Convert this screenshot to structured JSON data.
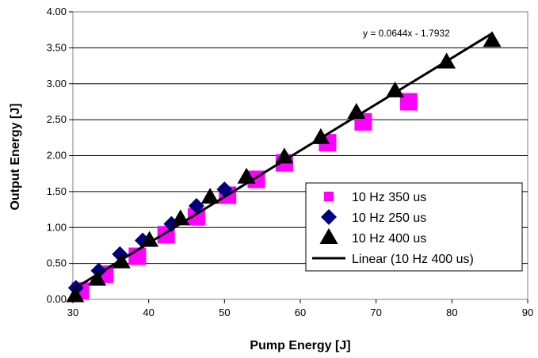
{
  "chart_data": {
    "type": "scatter",
    "title": "",
    "xlabel": "Pump Energy [J]",
    "ylabel": "Output Energy [J]",
    "xlim": [
      30,
      90
    ],
    "ylim": [
      0,
      4
    ],
    "xticks": [
      "30",
      "40",
      "50",
      "60",
      "70",
      "80",
      "90"
    ],
    "yticks": [
      "0.00",
      "0.50",
      "1.00",
      "1.50",
      "2.00",
      "2.50",
      "3.00",
      "3.50",
      "4.00"
    ],
    "grid": "horizontal",
    "legend_position": "bottom-right",
    "trendline_equation": "y = 0.0644x - 1.7932",
    "trendline": {
      "name": "Linear (10 Hz 400 us)",
      "slope": 0.0644,
      "intercept": -1.7932,
      "x_range": [
        30.3,
        85.3
      ],
      "color": "#000000"
    },
    "series": [
      {
        "name": "10 Hz 350 us",
        "marker": "square",
        "color": "#ff00ff",
        "x": [
          31.0,
          34.2,
          38.5,
          42.3,
          46.3,
          50.4,
          54.2,
          57.9,
          63.6,
          68.3,
          74.3
        ],
        "y": [
          0.12,
          0.35,
          0.6,
          0.9,
          1.15,
          1.45,
          1.67,
          1.9,
          2.18,
          2.47,
          2.75
        ]
      },
      {
        "name": "10 Hz 250 us",
        "marker": "diamond",
        "color": "#000080",
        "x": [
          30.4,
          33.4,
          36.2,
          39.2,
          43.0,
          46.3,
          50.0
        ],
        "y": [
          0.16,
          0.4,
          0.63,
          0.82,
          1.05,
          1.3,
          1.53
        ]
      },
      {
        "name": "10 Hz 400 us",
        "marker": "triangle",
        "color": "#000000",
        "x": [
          30.3,
          33.2,
          36.4,
          40.1,
          44.2,
          48.1,
          52.9,
          57.9,
          62.7,
          67.4,
          72.5,
          79.3,
          85.3
        ],
        "y": [
          0.05,
          0.28,
          0.52,
          0.82,
          1.12,
          1.42,
          1.7,
          1.98,
          2.25,
          2.6,
          2.9,
          3.3,
          3.6
        ]
      }
    ]
  }
}
